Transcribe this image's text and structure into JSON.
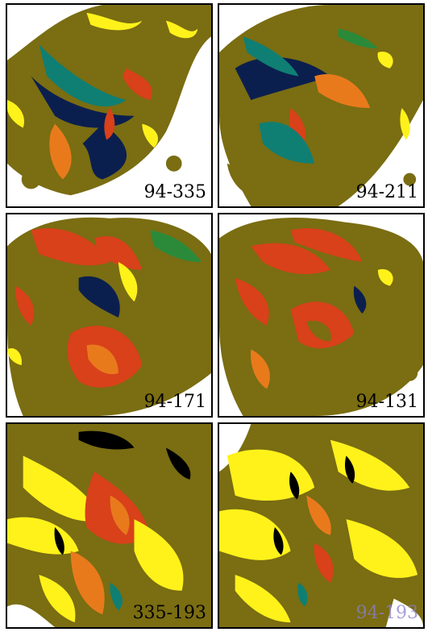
{
  "panels": [
    {
      "label": "94-335",
      "faded": false
    },
    {
      "label": "94-211",
      "faded": false
    },
    {
      "label": "94-171",
      "faded": false
    },
    {
      "label": "94-131",
      "faded": false
    },
    {
      "label": "335-193",
      "faded": false
    },
    {
      "label": "94-193",
      "faded": true
    }
  ],
  "palette": {
    "olive": "#7a6d12",
    "red": "#d8411a",
    "orange": "#e87a1c",
    "yellow": "#fff21a",
    "teal": "#0f7f73",
    "green": "#2a8a3a",
    "navy": "#0b1f4f",
    "black": "#000000",
    "white": "#ffffff"
  }
}
